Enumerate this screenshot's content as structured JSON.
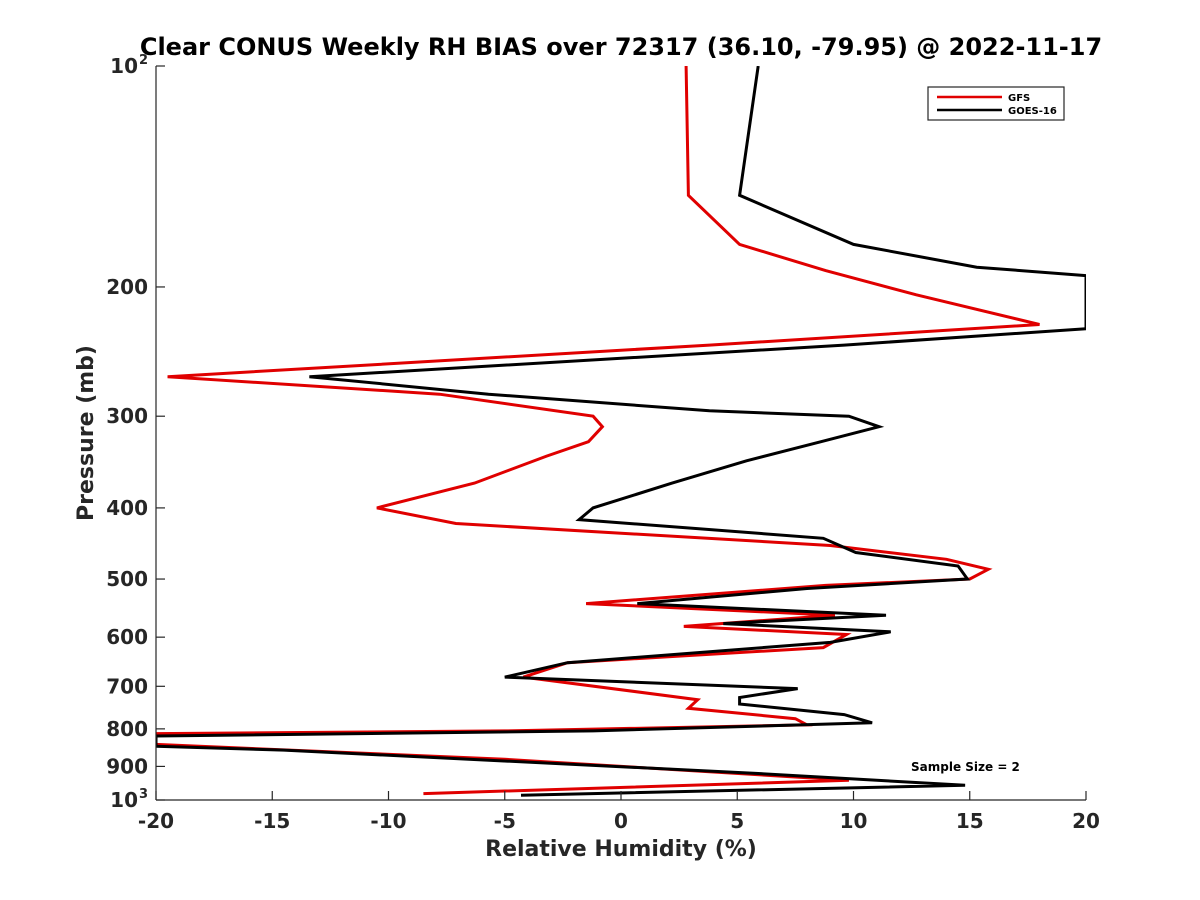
{
  "chart_data": {
    "type": "line",
    "title": "Clear CONUS Weekly RH BIAS over 72317 (36.10, -79.95) @ 2022-11-17",
    "xlabel": "Relative Humidity (%)",
    "ylabel": "Pressure (mb)",
    "xlim": [
      -20,
      20
    ],
    "ylim": [
      100,
      1000
    ],
    "y_scale": "log",
    "y_reversed": true,
    "x_ticks": [
      "-20",
      "-15",
      "-10",
      "-5",
      "0",
      "5",
      "10",
      "15",
      "20"
    ],
    "y_ticks": [
      {
        "value": 100,
        "label": "10",
        "sup": "2"
      },
      {
        "value": 200,
        "label": "200",
        "sup": ""
      },
      {
        "value": 300,
        "label": "300",
        "sup": ""
      },
      {
        "value": 400,
        "label": "400",
        "sup": ""
      },
      {
        "value": 500,
        "label": "500",
        "sup": ""
      },
      {
        "value": 600,
        "label": "600",
        "sup": ""
      },
      {
        "value": 700,
        "label": "700",
        "sup": ""
      },
      {
        "value": 800,
        "label": "800",
        "sup": ""
      },
      {
        "value": 900,
        "label": "900",
        "sup": ""
      },
      {
        "value": 1000,
        "label": "10",
        "sup": "3"
      }
    ],
    "grid": false,
    "legend_position": "top-right",
    "annotation": "Sample Size = 2",
    "series": [
      {
        "name": "GFS",
        "color": "#e00000",
        "points": [
          {
            "x": 2.8,
            "p": 100
          },
          {
            "x": 2.9,
            "p": 150
          },
          {
            "x": 5.1,
            "p": 175
          },
          {
            "x": 8.8,
            "p": 190
          },
          {
            "x": 12.7,
            "p": 205
          },
          {
            "x": 18.0,
            "p": 225
          },
          {
            "x": 3.8,
            "p": 240
          },
          {
            "x": -19.5,
            "p": 265
          },
          {
            "x": -7.8,
            "p": 280
          },
          {
            "x": -1.2,
            "p": 300
          },
          {
            "x": -0.8,
            "p": 310
          },
          {
            "x": -1.4,
            "p": 325
          },
          {
            "x": -3.2,
            "p": 340
          },
          {
            "x": -6.3,
            "p": 370
          },
          {
            "x": -10.5,
            "p": 400
          },
          {
            "x": -7.1,
            "p": 420
          },
          {
            "x": 9.0,
            "p": 450
          },
          {
            "x": 14.0,
            "p": 470
          },
          {
            "x": 15.8,
            "p": 485
          },
          {
            "x": 15.0,
            "p": 500
          },
          {
            "x": 8.8,
            "p": 510
          },
          {
            "x": -1.5,
            "p": 540
          },
          {
            "x": 9.2,
            "p": 560
          },
          {
            "x": 2.7,
            "p": 580
          },
          {
            "x": 9.7,
            "p": 595
          },
          {
            "x": 8.7,
            "p": 620
          },
          {
            "x": -2.3,
            "p": 650
          },
          {
            "x": -4.2,
            "p": 680
          },
          {
            "x": 3.3,
            "p": 730
          },
          {
            "x": 2.9,
            "p": 750
          },
          {
            "x": 7.5,
            "p": 775
          },
          {
            "x": 8.0,
            "p": 790
          },
          {
            "x": -5.0,
            "p": 805
          },
          {
            "x": -20.0,
            "p": 812
          },
          {
            "x": -20.0,
            "p": 840
          },
          {
            "x": -5.0,
            "p": 880
          },
          {
            "x": 9.8,
            "p": 940
          },
          {
            "x": -8.5,
            "p": 980
          }
        ]
      },
      {
        "name": "GOES-16",
        "color": "#000000",
        "points": [
          {
            "x": 5.9,
            "p": 100
          },
          {
            "x": 5.1,
            "p": 150
          },
          {
            "x": 10.0,
            "p": 175
          },
          {
            "x": 15.3,
            "p": 188
          },
          {
            "x": 20.0,
            "p": 193
          },
          {
            "x": 20.0,
            "p": 228
          },
          {
            "x": 9.6,
            "p": 240
          },
          {
            "x": -13.4,
            "p": 265
          },
          {
            "x": -5.7,
            "p": 280
          },
          {
            "x": 3.8,
            "p": 295
          },
          {
            "x": 9.8,
            "p": 300
          },
          {
            "x": 11.1,
            "p": 310
          },
          {
            "x": 8.6,
            "p": 325
          },
          {
            "x": 5.4,
            "p": 345
          },
          {
            "x": 2.2,
            "p": 370
          },
          {
            "x": -1.2,
            "p": 400
          },
          {
            "x": -1.8,
            "p": 415
          },
          {
            "x": 8.7,
            "p": 440
          },
          {
            "x": 10.1,
            "p": 460
          },
          {
            "x": 14.5,
            "p": 480
          },
          {
            "x": 14.9,
            "p": 500
          },
          {
            "x": 8.0,
            "p": 515
          },
          {
            "x": 0.7,
            "p": 540
          },
          {
            "x": 11.4,
            "p": 560
          },
          {
            "x": 4.4,
            "p": 575
          },
          {
            "x": 11.6,
            "p": 590
          },
          {
            "x": 9.0,
            "p": 610
          },
          {
            "x": -2.3,
            "p": 650
          },
          {
            "x": -5.0,
            "p": 680
          },
          {
            "x": 7.6,
            "p": 705
          },
          {
            "x": 5.1,
            "p": 725
          },
          {
            "x": 5.1,
            "p": 740
          },
          {
            "x": 9.6,
            "p": 765
          },
          {
            "x": 10.8,
            "p": 785
          },
          {
            "x": -1.2,
            "p": 805
          },
          {
            "x": -20.0,
            "p": 818
          },
          {
            "x": -20.0,
            "p": 845
          },
          {
            "x": -14.5,
            "p": 855
          },
          {
            "x": 5.8,
            "p": 920
          },
          {
            "x": 14.8,
            "p": 955
          },
          {
            "x": -4.3,
            "p": 985
          }
        ]
      }
    ]
  }
}
